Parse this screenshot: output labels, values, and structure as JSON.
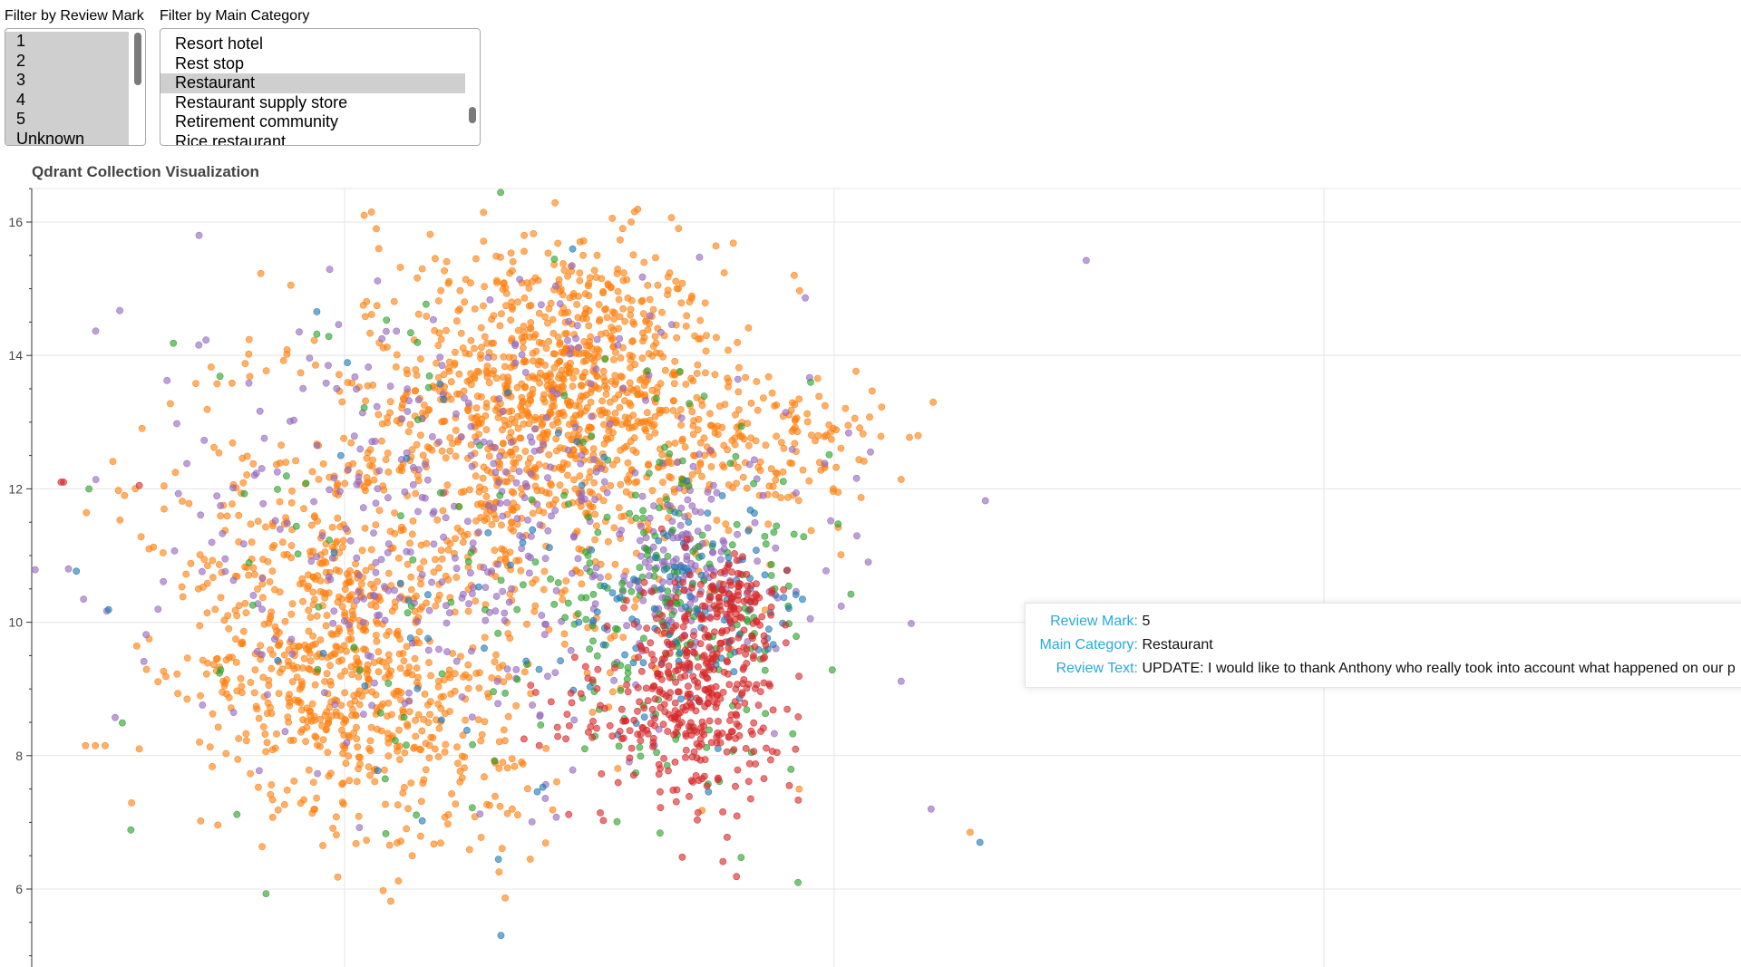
{
  "filters": {
    "review": {
      "label": "Filter by Review Mark",
      "options": [
        "1",
        "2",
        "3",
        "4",
        "5",
        "Unknown"
      ],
      "selected": [
        "1",
        "2",
        "3",
        "4",
        "5",
        "Unknown"
      ]
    },
    "category": {
      "label": "Filter by Main Category",
      "options": [
        "Resort hotel",
        "Rest stop",
        "Restaurant",
        "Restaurant supply store",
        "Retirement community",
        "Rice restaurant"
      ],
      "selected": [
        "Restaurant"
      ]
    }
  },
  "tooltip": {
    "review_mark_label": "Review Mark:",
    "review_mark_value": "5",
    "main_category_label": "Main Category:",
    "main_category_value": "Restaurant",
    "review_text_label": "Review Text:",
    "review_text_value": "UPDATE: I would like to thank Anthony who really took into account what happened on our p"
  },
  "chart_data": {
    "type": "scatter",
    "title": "Qdrant Collection Visualization",
    "xlabel": "",
    "ylabel": "",
    "ylim": [
      4.5,
      16.5
    ],
    "xlim": [
      -1.0,
      20.0
    ],
    "yticks": [
      "6",
      "8",
      "10",
      "12",
      "14",
      "16"
    ],
    "grid": true,
    "colors": {
      "orange": "#ff7f0e",
      "purple": "#9467bd",
      "green": "#2ca02c",
      "blue": "#1f77b4",
      "red": "#d62728"
    },
    "clusters": [
      {
        "color": "orange",
        "center": [
          9.5,
          13.5
        ],
        "spread": [
          1.6,
          1.1
        ],
        "count": 900
      },
      {
        "color": "orange",
        "center": [
          4.5,
          9.4
        ],
        "spread": [
          1.2,
          1.0
        ],
        "count": 420
      },
      {
        "color": "orange",
        "center": [
          6.5,
          11.5
        ],
        "spread": [
          2.8,
          1.5
        ],
        "count": 520
      },
      {
        "color": "orange",
        "center": [
          13.6,
          12.6
        ],
        "spread": [
          1.2,
          0.6
        ],
        "count": 160
      },
      {
        "color": "orange",
        "center": [
          6.8,
          8.2
        ],
        "spread": [
          1.3,
          0.9
        ],
        "count": 180
      },
      {
        "color": "purple",
        "center": [
          7.5,
          11.5
        ],
        "spread": [
          3.5,
          1.8
        ],
        "count": 420
      },
      {
        "color": "purple",
        "center": [
          11.9,
          10.8
        ],
        "spread": [
          0.8,
          0.6
        ],
        "count": 140
      },
      {
        "color": "green",
        "center": [
          11.8,
          10.2
        ],
        "spread": [
          1.5,
          1.2
        ],
        "count": 180
      },
      {
        "color": "green",
        "center": [
          7.0,
          10.5
        ],
        "spread": [
          3.2,
          2.0
        ],
        "count": 90
      },
      {
        "color": "blue",
        "center": [
          12.2,
          10.2
        ],
        "spread": [
          1.2,
          0.8
        ],
        "count": 110
      },
      {
        "color": "blue",
        "center": [
          7.0,
          10.5
        ],
        "spread": [
          3.0,
          2.0
        ],
        "count": 40
      },
      {
        "color": "red",
        "center": [
          12.2,
          9.0
        ],
        "spread": [
          0.8,
          0.8
        ],
        "count": 340
      },
      {
        "color": "red",
        "center": [
          13.0,
          10.3
        ],
        "spread": [
          0.5,
          0.3
        ],
        "count": 90
      },
      {
        "color": "red",
        "center": [
          11.0,
          8.5
        ],
        "spread": [
          1.0,
          0.5
        ],
        "count": 60
      }
    ],
    "outliers": [
      {
        "x": -0.8,
        "y": 12.1,
        "color": "red"
      },
      {
        "x": -0.75,
        "y": 12.1,
        "color": "red"
      },
      {
        "x": 0.8,
        "y": 12.05,
        "color": "red"
      },
      {
        "x": 5.4,
        "y": 16.1,
        "color": "orange"
      },
      {
        "x": 5.55,
        "y": 16.15,
        "color": "orange"
      },
      {
        "x": 5.65,
        "y": 15.9,
        "color": "orange"
      },
      {
        "x": 5.7,
        "y": 15.6,
        "color": "orange"
      },
      {
        "x": 14.2,
        "y": 15.2,
        "color": "orange"
      },
      {
        "x": 0.8,
        "y": 8.1,
        "color": "orange"
      },
      {
        "x": -0.3,
        "y": 8.15,
        "color": "orange"
      },
      {
        "x": -0.1,
        "y": 8.15,
        "color": "orange"
      },
      {
        "x": 0.1,
        "y": 8.15,
        "color": "orange"
      },
      {
        "x": 17.0,
        "y": 7.2,
        "color": "purple"
      },
      {
        "x": 17.8,
        "y": 6.85,
        "color": "orange"
      },
      {
        "x": 18.0,
        "y": 6.7,
        "color": "blue"
      },
      {
        "x": 14.1,
        "y": 7.55,
        "color": "red"
      },
      {
        "x": 14.3,
        "y": 7.5,
        "color": "orange"
      },
      {
        "x": 15.0,
        "y": 12.0,
        "color": "orange"
      },
      {
        "x": 15.1,
        "y": 11.95,
        "color": "orange"
      },
      {
        "x": 3.1,
        "y": 11.2,
        "color": "orange"
      },
      {
        "x": 1.0,
        "y": 11.1,
        "color": "orange"
      },
      {
        "x": 0.5,
        "y": 11.9,
        "color": "orange"
      }
    ]
  }
}
